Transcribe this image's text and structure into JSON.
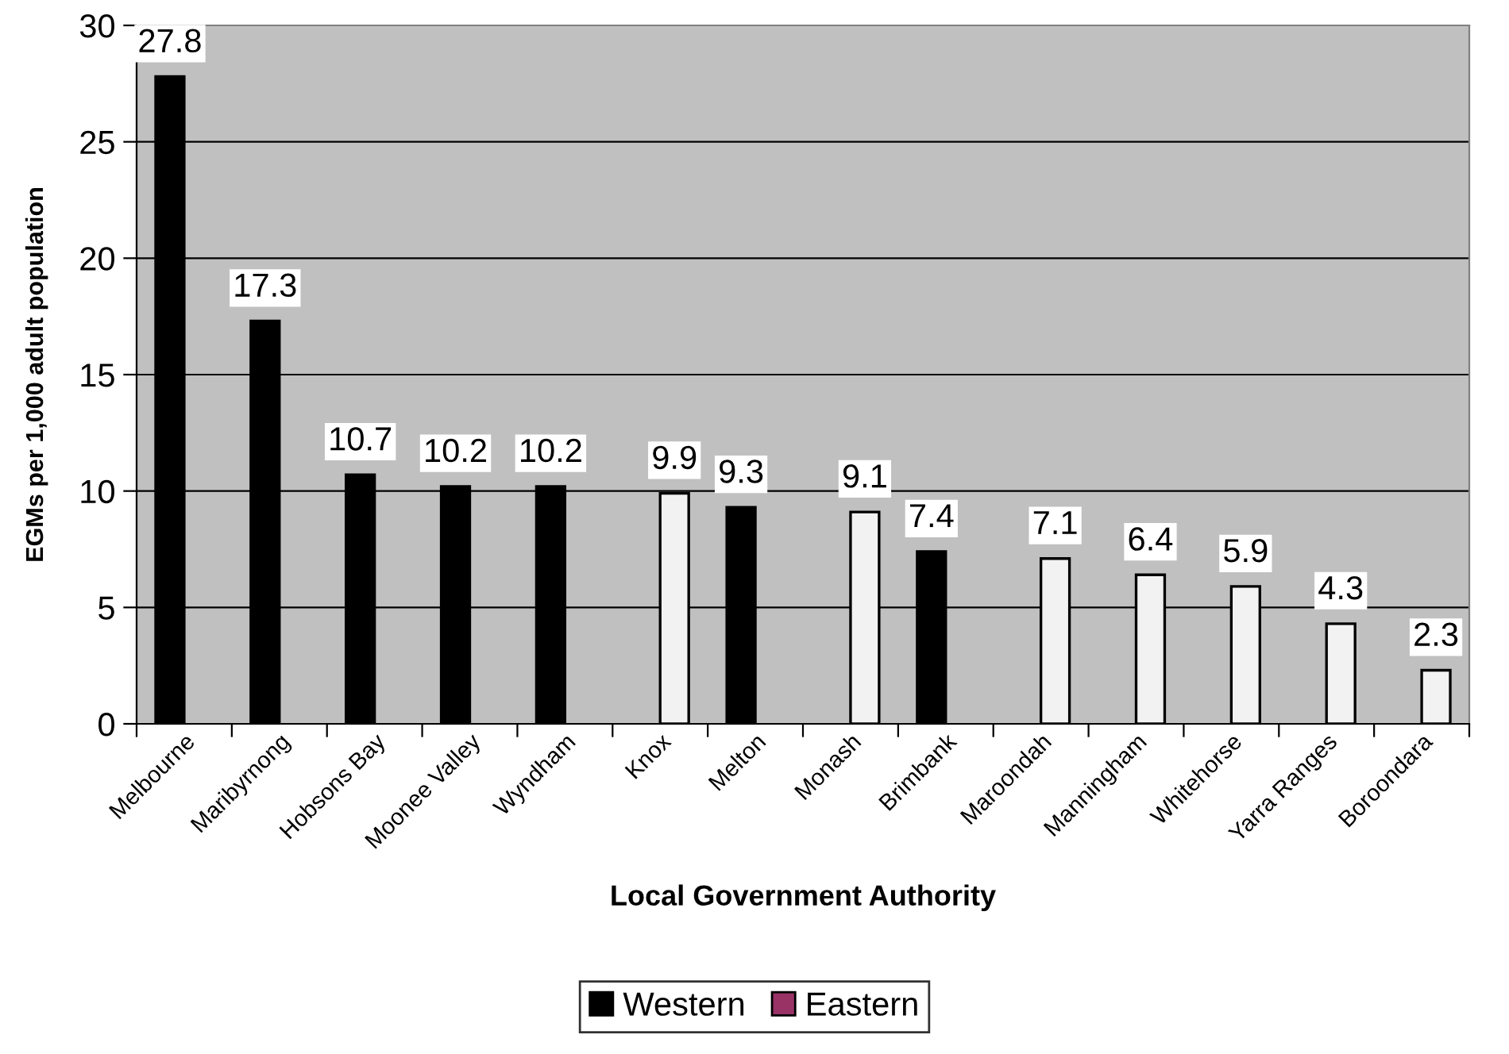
{
  "chart_data": {
    "type": "bar",
    "xlabel": "Local Government Authority",
    "ylabel": "EGMs per 1,000 adult population",
    "categories": [
      "Melbourne",
      "Maribyrnong",
      "Hobsons Bay",
      "Moonee Valley",
      "Wyndham",
      "Knox",
      "Melton",
      "Monash",
      "Brimbank",
      "Maroondah",
      "Manningham",
      "Whitehorse",
      "Yarra Ranges",
      "Boroondara"
    ],
    "series": [
      {
        "name": "Western",
        "color": "#000000",
        "values": [
          27.8,
          17.3,
          10.7,
          10.2,
          10.2,
          null,
          9.3,
          null,
          7.4,
          null,
          null,
          null,
          null,
          null
        ]
      },
      {
        "name": "Eastern",
        "color": "#993366",
        "colors": [
          null,
          null,
          null,
          null,
          null,
          "#f2f2f2",
          null,
          "#f2f2f2",
          null,
          "#f2f2f2",
          "#f2f2f2",
          "#f2f2f2",
          "#f2f2f2",
          "#f2f2f2"
        ],
        "values": [
          null,
          null,
          null,
          null,
          null,
          9.9,
          null,
          9.1,
          null,
          7.1,
          6.4,
          5.9,
          4.3,
          2.3
        ]
      }
    ],
    "ylim": [
      0,
      30
    ],
    "yticks": [
      0,
      5,
      10,
      15,
      20,
      25,
      30
    ],
    "grid": "y",
    "legend": "bottom",
    "data_labels": true
  }
}
